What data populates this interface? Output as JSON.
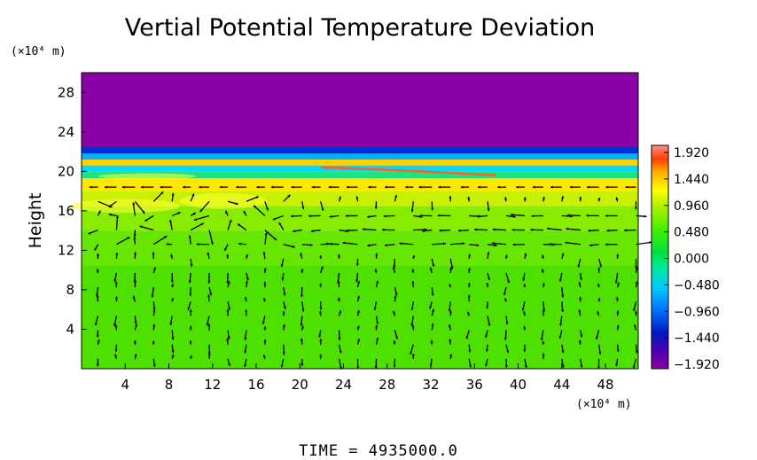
{
  "chart_data": {
    "type": "heatmap",
    "title": "Vertial Potential Temperature Deviation",
    "ylabel": "Height",
    "y_unit": "(×10⁴ m)",
    "x_unit": "(×10⁴ m)",
    "xlim": [
      0,
      51
    ],
    "ylim": [
      0,
      30
    ],
    "x_ticks": [
      "4",
      "8",
      "12",
      "16",
      "20",
      "24",
      "28",
      "32",
      "36",
      "40",
      "44",
      "48"
    ],
    "x_tick_values": [
      4,
      8,
      12,
      16,
      20,
      24,
      28,
      32,
      36,
      40,
      44,
      48
    ],
    "y_ticks": [
      "4",
      "8",
      "12",
      "16",
      "20",
      "24",
      "28"
    ],
    "y_tick_values": [
      4,
      8,
      12,
      16,
      20,
      24,
      28
    ],
    "colorbar": {
      "labels": [
        "1.920",
        "1.440",
        "0.960",
        "0.480",
        "0.000",
        "−0.480",
        "−0.960",
        "−1.440",
        "−1.920"
      ],
      "min": -1.92,
      "max": 1.92,
      "colors": [
        "#8c00a8",
        "#0018c0",
        "#0070ff",
        "#00c8ff",
        "#00e8a0",
        "#00e040",
        "#40f000",
        "#a8f000",
        "#ffff00",
        "#ffb000",
        "#ff4000",
        "#ff9090"
      ]
    },
    "layers": [
      {
        "from": 0,
        "to": 10.5,
        "value": 0.25
      },
      {
        "from": 10.5,
        "to": 18,
        "value": 0.55
      },
      {
        "from": 18,
        "to": 19.5,
        "value": 1.0
      },
      {
        "from": 19.5,
        "to": 22.5,
        "value": "mixed"
      },
      {
        "from": 22.5,
        "to": 30,
        "value": -1.92
      }
    ],
    "vector_field": true,
    "footer": "TIME = 4935000.0"
  }
}
